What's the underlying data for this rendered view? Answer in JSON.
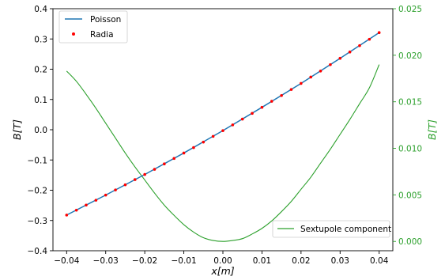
{
  "chart_data": {
    "type": "line",
    "xlabel": "x[m]",
    "ylabel_left": "B[T]",
    "ylabel_right": "B[T]",
    "xlim": [
      -0.0435,
      0.0435
    ],
    "ylim_left": [
      -0.4,
      0.4
    ],
    "ylim_right": [
      -0.001,
      0.025
    ],
    "x_ticks": [
      -0.04,
      -0.03,
      -0.02,
      -0.01,
      0.0,
      0.01,
      0.02,
      0.03,
      0.04
    ],
    "x_tick_labels": [
      "−0.04",
      "−0.03",
      "−0.02",
      "−0.01",
      "0.00",
      "0.01",
      "0.02",
      "0.03",
      "0.04"
    ],
    "y_left_ticks": [
      -0.4,
      -0.3,
      -0.2,
      -0.1,
      0.0,
      0.1,
      0.2,
      0.3,
      0.4
    ],
    "y_left_tick_labels": [
      "−0.4",
      "−0.3",
      "−0.2",
      "−0.1",
      "0.0",
      "0.1",
      "0.2",
      "0.3",
      "0.4"
    ],
    "y_right_ticks": [
      0.0,
      0.005,
      0.01,
      0.015,
      0.02,
      0.025
    ],
    "y_right_tick_labels": [
      "0.000",
      "0.005",
      "0.010",
      "0.015",
      "0.020",
      "0.025"
    ],
    "grid": false,
    "colors": {
      "poisson": "#1f77b4",
      "radia": "#ff0000",
      "sextupole": "#2ca02c",
      "right_axis": "#2ca02c"
    },
    "series": [
      {
        "name": "Poisson",
        "axis": "left",
        "style": "line",
        "x": [
          -0.04,
          -0.03,
          -0.02,
          -0.01,
          0.0,
          0.01,
          0.02,
          0.03,
          0.04
        ],
        "y": [
          -0.282,
          -0.216,
          -0.148,
          -0.077,
          -0.003,
          0.074,
          0.153,
          0.236,
          0.321
        ]
      },
      {
        "name": "Radia",
        "axis": "left",
        "style": "markers",
        "x": [
          -0.04,
          -0.0375,
          -0.035,
          -0.0325,
          -0.03,
          -0.0275,
          -0.025,
          -0.0225,
          -0.02,
          -0.0175,
          -0.015,
          -0.0125,
          -0.01,
          -0.0075,
          -0.005,
          -0.0025,
          0.0,
          0.0025,
          0.005,
          0.0075,
          0.01,
          0.0125,
          0.015,
          0.0175,
          0.02,
          0.0225,
          0.025,
          0.0275,
          0.03,
          0.0325,
          0.035,
          0.0375,
          0.04
        ],
        "y": [
          -0.282,
          -0.266,
          -0.249,
          -0.233,
          -0.216,
          -0.199,
          -0.182,
          -0.165,
          -0.148,
          -0.131,
          -0.113,
          -0.095,
          -0.077,
          -0.059,
          -0.041,
          -0.022,
          -0.003,
          0.016,
          0.035,
          0.054,
          0.074,
          0.094,
          0.113,
          0.133,
          0.153,
          0.174,
          0.194,
          0.215,
          0.236,
          0.257,
          0.278,
          0.299,
          0.321
        ]
      },
      {
        "name": "Sextupole component",
        "axis": "right",
        "style": "line",
        "x": [
          -0.04,
          -0.0375,
          -0.035,
          -0.0325,
          -0.03,
          -0.0275,
          -0.025,
          -0.0225,
          -0.02,
          -0.0175,
          -0.015,
          -0.0125,
          -0.01,
          -0.0075,
          -0.005,
          -0.0025,
          0.0,
          0.0025,
          0.005,
          0.0075,
          0.01,
          0.0125,
          0.015,
          0.0175,
          0.02,
          0.0225,
          0.025,
          0.0275,
          0.03,
          0.0325,
          0.035,
          0.0375,
          0.04
        ],
        "y": [
          0.0183,
          0.0172,
          0.0158,
          0.0143,
          0.0127,
          0.0111,
          0.0095,
          0.008,
          0.0066,
          0.0052,
          0.0039,
          0.0028,
          0.0018,
          0.001,
          0.0004,
          0.0001,
          0.0,
          0.0001,
          0.0003,
          0.0008,
          0.0014,
          0.0022,
          0.0032,
          0.0043,
          0.0056,
          0.0069,
          0.0084,
          0.0099,
          0.0115,
          0.0131,
          0.0148,
          0.0165,
          0.019
        ]
      }
    ],
    "legend_upper": {
      "placement": "top-left",
      "entries": [
        "Poisson",
        "Radia"
      ]
    },
    "legend_lower": {
      "placement": "bottom-right",
      "entries": [
        "Sextupole component"
      ]
    }
  }
}
